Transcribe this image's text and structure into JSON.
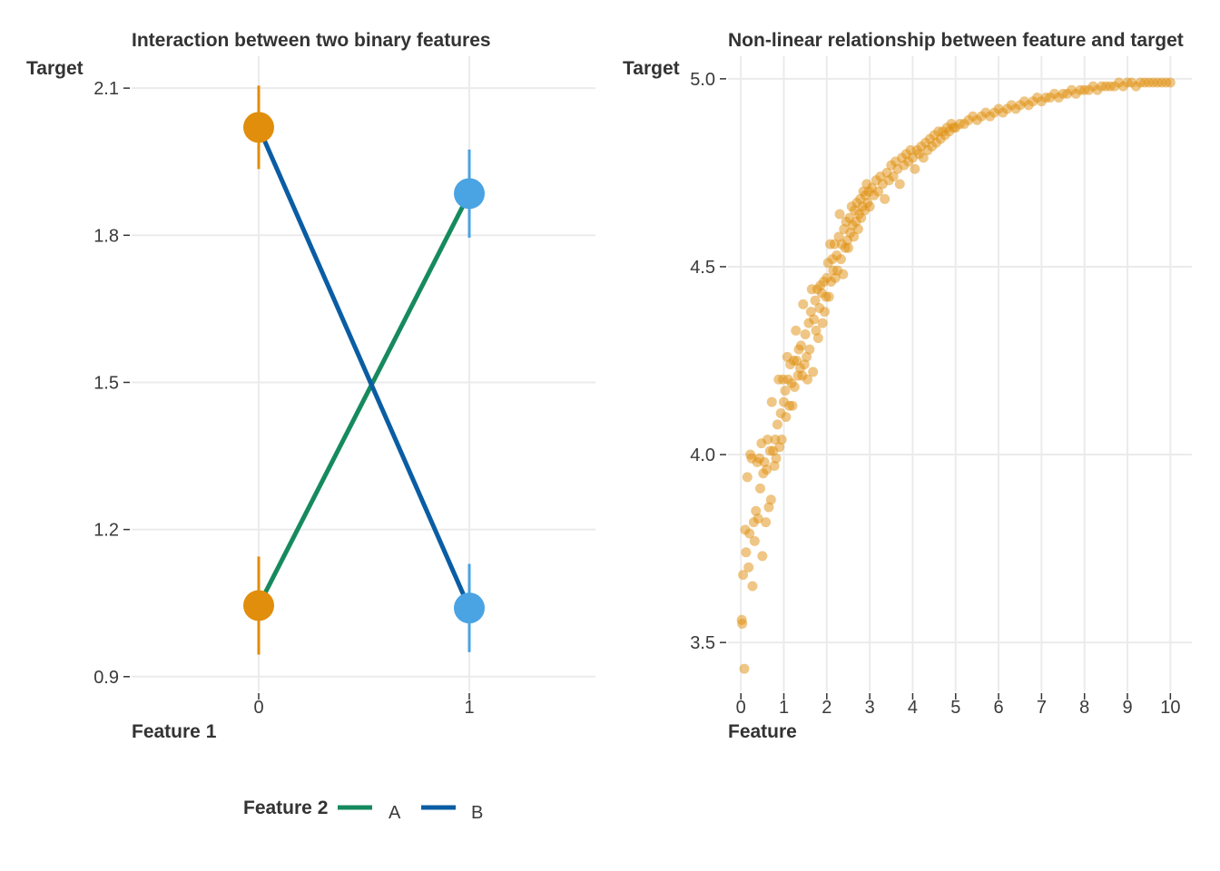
{
  "chart_data": [
    {
      "type": "line",
      "title": "Interaction between two binary features",
      "xlabel": "Feature 1",
      "ylabel": "Target",
      "categories": [
        "0",
        "1"
      ],
      "yticks": [
        "0.9",
        "1.2",
        "1.5",
        "1.8",
        "2.1"
      ],
      "ylim": [
        0.87,
        2.165
      ],
      "grid": true,
      "legend": {
        "title": "Feature 2",
        "placement": "bottom",
        "entries": [
          {
            "label": "A",
            "color": "#168a5e"
          },
          {
            "label": "B",
            "color": "#0a5da3"
          }
        ]
      },
      "series": [
        {
          "name": "A",
          "line_color": "#168a5e",
          "values": [
            1.045,
            1.885
          ],
          "point_colors": [
            "#e08e0b",
            "#4aa3e2"
          ],
          "error_bars": [
            [
              0.945,
              1.145
            ],
            [
              1.795,
              1.975
            ]
          ]
        },
        {
          "name": "B",
          "line_color": "#0a5da3",
          "values": [
            2.02,
            1.04
          ],
          "point_colors": [
            "#e08e0b",
            "#4aa3e2"
          ],
          "error_bars": [
            [
              1.935,
              2.105
            ],
            [
              0.95,
              1.13
            ]
          ]
        }
      ]
    },
    {
      "type": "scatter",
      "title": "Non-linear relationship between feature and target",
      "xlabel": "Feature",
      "ylabel": "Target",
      "xticks": [
        "0",
        "1",
        "2",
        "3",
        "4",
        "5",
        "6",
        "7",
        "8",
        "9",
        "10"
      ],
      "yticks": [
        "3.5",
        "4.0",
        "4.5",
        "5.0"
      ],
      "xlim": [
        -0.3,
        10.5
      ],
      "ylim": [
        3.37,
        5.06
      ],
      "grid": true,
      "point_color": "#e08e0b",
      "point_opacity": 0.5,
      "points": [
        [
          0.02,
          3.56
        ],
        [
          0.03,
          3.55
        ],
        [
          0.05,
          3.68
        ],
        [
          0.08,
          3.43
        ],
        [
          0.1,
          3.8
        ],
        [
          0.12,
          3.74
        ],
        [
          0.15,
          3.94
        ],
        [
          0.18,
          3.7
        ],
        [
          0.2,
          3.79
        ],
        [
          0.22,
          4.0
        ],
        [
          0.25,
          3.99
        ],
        [
          0.27,
          3.65
        ],
        [
          0.3,
          3.82
        ],
        [
          0.32,
          3.77
        ],
        [
          0.35,
          3.85
        ],
        [
          0.38,
          3.98
        ],
        [
          0.4,
          3.83
        ],
        [
          0.43,
          3.99
        ],
        [
          0.45,
          3.91
        ],
        [
          0.48,
          4.03
        ],
        [
          0.5,
          3.73
        ],
        [
          0.52,
          3.95
        ],
        [
          0.55,
          3.98
        ],
        [
          0.58,
          3.82
        ],
        [
          0.6,
          3.96
        ],
        [
          0.62,
          4.04
        ],
        [
          0.65,
          3.86
        ],
        [
          0.68,
          4.01
        ],
        [
          0.7,
          3.88
        ],
        [
          0.72,
          4.14
        ],
        [
          0.75,
          4.01
        ],
        [
          0.78,
          3.97
        ],
        [
          0.8,
          4.04
        ],
        [
          0.82,
          3.99
        ],
        [
          0.85,
          4.08
        ],
        [
          0.88,
          4.2
        ],
        [
          0.9,
          4.02
        ],
        [
          0.93,
          4.11
        ],
        [
          0.95,
          4.04
        ],
        [
          0.98,
          4.2
        ],
        [
          1.0,
          4.14
        ],
        [
          1.03,
          4.17
        ],
        [
          1.05,
          4.1
        ],
        [
          1.08,
          4.26
        ],
        [
          1.1,
          4.2
        ],
        [
          1.13,
          4.13
        ],
        [
          1.15,
          4.24
        ],
        [
          1.18,
          4.19
        ],
        [
          1.2,
          4.13
        ],
        [
          1.23,
          4.25
        ],
        [
          1.25,
          4.18
        ],
        [
          1.28,
          4.33
        ],
        [
          1.3,
          4.25
        ],
        [
          1.33,
          4.21
        ],
        [
          1.35,
          4.28
        ],
        [
          1.38,
          4.23
        ],
        [
          1.4,
          4.29
        ],
        [
          1.43,
          4.21
        ],
        [
          1.45,
          4.4
        ],
        [
          1.48,
          4.24
        ],
        [
          1.5,
          4.32
        ],
        [
          1.53,
          4.26
        ],
        [
          1.55,
          4.2
        ],
        [
          1.58,
          4.35
        ],
        [
          1.6,
          4.28
        ],
        [
          1.63,
          4.38
        ],
        [
          1.65,
          4.44
        ],
        [
          1.68,
          4.22
        ],
        [
          1.7,
          4.36
        ],
        [
          1.73,
          4.41
        ],
        [
          1.75,
          4.33
        ],
        [
          1.78,
          4.44
        ],
        [
          1.8,
          4.31
        ],
        [
          1.83,
          4.39
        ],
        [
          1.85,
          4.45
        ],
        [
          1.88,
          4.43
        ],
        [
          1.9,
          4.35
        ],
        [
          1.93,
          4.46
        ],
        [
          1.95,
          4.38
        ],
        [
          1.98,
          4.42
        ],
        [
          2.0,
          4.47
        ],
        [
          2.03,
          4.51
        ],
        [
          2.05,
          4.42
        ],
        [
          2.08,
          4.56
        ],
        [
          2.1,
          4.46
        ],
        [
          2.13,
          4.52
        ],
        [
          2.15,
          4.49
        ],
        [
          2.18,
          4.56
        ],
        [
          2.2,
          4.47
        ],
        [
          2.23,
          4.53
        ],
        [
          2.25,
          4.49
        ],
        [
          2.28,
          4.58
        ],
        [
          2.3,
          4.64
        ],
        [
          2.33,
          4.52
        ],
        [
          2.35,
          4.56
        ],
        [
          2.38,
          4.48
        ],
        [
          2.4,
          4.6
        ],
        [
          2.43,
          4.55
        ],
        [
          2.45,
          4.62
        ],
        [
          2.48,
          4.57
        ],
        [
          2.5,
          4.55
        ],
        [
          2.53,
          4.63
        ],
        [
          2.55,
          4.59
        ],
        [
          2.58,
          4.66
        ],
        [
          2.6,
          4.61
        ],
        [
          2.63,
          4.58
        ],
        [
          2.65,
          4.65
        ],
        [
          2.68,
          4.62
        ],
        [
          2.7,
          4.67
        ],
        [
          2.73,
          4.6
        ],
        [
          2.75,
          4.64
        ],
        [
          2.78,
          4.68
        ],
        [
          2.8,
          4.63
        ],
        [
          2.83,
          4.66
        ],
        [
          2.85,
          4.7
        ],
        [
          2.88,
          4.65
        ],
        [
          2.9,
          4.69
        ],
        [
          2.93,
          4.72
        ],
        [
          2.95,
          4.67
        ],
        [
          2.98,
          4.7
        ],
        [
          3.0,
          4.66
        ],
        [
          3.05,
          4.71
        ],
        [
          3.1,
          4.69
        ],
        [
          3.15,
          4.73
        ],
        [
          3.2,
          4.7
        ],
        [
          3.25,
          4.74
        ],
        [
          3.3,
          4.72
        ],
        [
          3.35,
          4.68
        ],
        [
          3.4,
          4.75
        ],
        [
          3.45,
          4.73
        ],
        [
          3.5,
          4.77
        ],
        [
          3.55,
          4.74
        ],
        [
          3.6,
          4.78
        ],
        [
          3.65,
          4.76
        ],
        [
          3.7,
          4.72
        ],
        [
          3.75,
          4.79
        ],
        [
          3.8,
          4.77
        ],
        [
          3.85,
          4.8
        ],
        [
          3.9,
          4.78
        ],
        [
          3.95,
          4.81
        ],
        [
          4.0,
          4.79
        ],
        [
          4.05,
          4.76
        ],
        [
          4.1,
          4.81
        ],
        [
          4.15,
          4.8
        ],
        [
          4.2,
          4.82
        ],
        [
          4.25,
          4.79
        ],
        [
          4.3,
          4.83
        ],
        [
          4.35,
          4.81
        ],
        [
          4.4,
          4.84
        ],
        [
          4.45,
          4.82
        ],
        [
          4.5,
          4.85
        ],
        [
          4.55,
          4.83
        ],
        [
          4.6,
          4.86
        ],
        [
          4.65,
          4.84
        ],
        [
          4.7,
          4.86
        ],
        [
          4.75,
          4.85
        ],
        [
          4.8,
          4.87
        ],
        [
          4.85,
          4.86
        ],
        [
          4.9,
          4.88
        ],
        [
          4.95,
          4.87
        ],
        [
          5.0,
          4.87
        ],
        [
          5.1,
          4.88
        ],
        [
          5.2,
          4.88
        ],
        [
          5.3,
          4.89
        ],
        [
          5.4,
          4.9
        ],
        [
          5.5,
          4.89
        ],
        [
          5.6,
          4.9
        ],
        [
          5.7,
          4.91
        ],
        [
          5.8,
          4.9
        ],
        [
          5.9,
          4.91
        ],
        [
          6.0,
          4.92
        ],
        [
          6.1,
          4.91
        ],
        [
          6.2,
          4.92
        ],
        [
          6.3,
          4.93
        ],
        [
          6.4,
          4.92
        ],
        [
          6.5,
          4.93
        ],
        [
          6.6,
          4.94
        ],
        [
          6.7,
          4.93
        ],
        [
          6.8,
          4.94
        ],
        [
          6.9,
          4.95
        ],
        [
          7.0,
          4.94
        ],
        [
          7.1,
          4.95
        ],
        [
          7.2,
          4.95
        ],
        [
          7.3,
          4.96
        ],
        [
          7.4,
          4.95
        ],
        [
          7.5,
          4.96
        ],
        [
          7.6,
          4.96
        ],
        [
          7.7,
          4.97
        ],
        [
          7.8,
          4.96
        ],
        [
          7.9,
          4.97
        ],
        [
          8.0,
          4.97
        ],
        [
          8.1,
          4.97
        ],
        [
          8.2,
          4.98
        ],
        [
          8.3,
          4.97
        ],
        [
          8.4,
          4.98
        ],
        [
          8.5,
          4.98
        ],
        [
          8.6,
          4.98
        ],
        [
          8.7,
          4.98
        ],
        [
          8.8,
          4.99
        ],
        [
          8.9,
          4.98
        ],
        [
          9.0,
          4.99
        ],
        [
          9.1,
          4.99
        ],
        [
          9.2,
          4.98
        ],
        [
          9.3,
          4.99
        ],
        [
          9.4,
          4.99
        ],
        [
          9.5,
          4.99
        ],
        [
          9.6,
          4.99
        ],
        [
          9.7,
          4.99
        ],
        [
          9.8,
          4.99
        ],
        [
          9.9,
          4.99
        ],
        [
          10.0,
          4.99
        ]
      ]
    }
  ]
}
